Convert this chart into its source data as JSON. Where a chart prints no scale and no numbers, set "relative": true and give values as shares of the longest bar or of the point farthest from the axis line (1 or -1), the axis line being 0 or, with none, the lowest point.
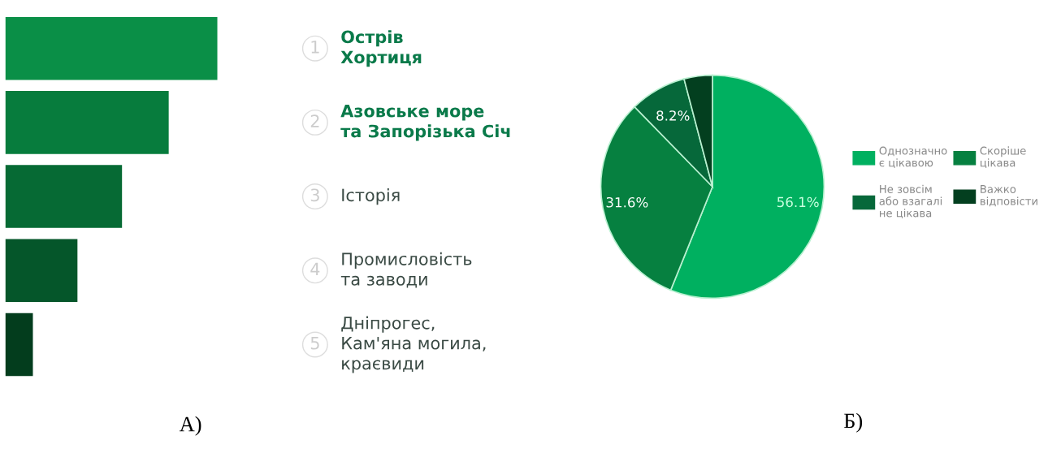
{
  "chart_data": [
    {
      "type": "bar",
      "orientation": "horizontal",
      "relative": true,
      "title": "А)",
      "categories": [
        "Острів\nХортиця",
        "Азовське море\nта Запорізька Січ",
        "Історія",
        "Промисловість\nта заводи",
        "Дніпрогес,\nКам'яна могила,\nкраєвиди"
      ],
      "values": [
        1,
        0.77,
        0.55,
        0.34,
        0.13
      ],
      "colors": [
        "#0a8f47",
        "#077c3d",
        "#066a34",
        "#05562a",
        "#033d1d"
      ],
      "annotations": [
        "1",
        "2",
        "3",
        "4",
        "5"
      ]
    },
    {
      "type": "pie",
      "title": "Б)",
      "categories": [
        "Однозначно\nє цікавою",
        "Скоріше\nцікава",
        "Не зовсім\nабо взагалі\nне цікава",
        "Важко\nвідповісти"
      ],
      "values": [
        56.1,
        31.6,
        8.2,
        4.1
      ],
      "colors": [
        "#00b060",
        "#068040",
        "#06683a",
        "#033f1f"
      ],
      "value_labels": [
        "56.1%",
        "31.6%",
        "8.2%",
        null
      ],
      "legend": "right"
    }
  ]
}
